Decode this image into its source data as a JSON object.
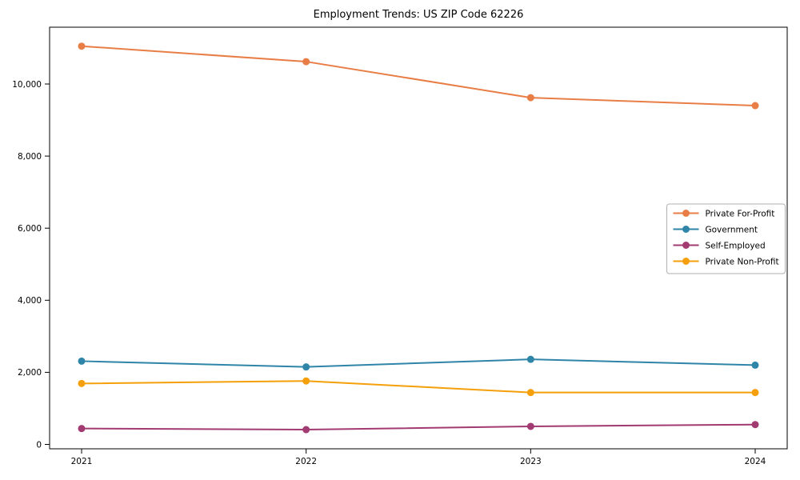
{
  "figure": {
    "background": "#ffffff"
  },
  "chart_data": {
    "type": "line",
    "title": "Employment Trends: US ZIP Code 62226",
    "xlabel": "",
    "ylabel": "",
    "x": [
      2021,
      2022,
      2023,
      2024
    ],
    "x_tick_labels": [
      "2021",
      "2022",
      "2023",
      "2024"
    ],
    "series": [
      {
        "name": "Private For-Profit",
        "color": "#E87D46",
        "values": [
          11050,
          10620,
          9620,
          9400
        ]
      },
      {
        "name": "Government",
        "color": "#2F85A8",
        "values": [
          2310,
          2150,
          2360,
          2200
        ]
      },
      {
        "name": "Self-Employed",
        "color": "#A23B72",
        "values": [
          440,
          410,
          500,
          550
        ]
      },
      {
        "name": "Private Non-Profit",
        "color": "#F59F0A",
        "values": [
          1690,
          1760,
          1440,
          1440
        ]
      }
    ],
    "ylim": [
      -122,
      11576
    ],
    "yticks": [
      0,
      2000,
      4000,
      6000,
      8000,
      10000
    ],
    "ytick_labels": [
      "0",
      "2,000",
      "4,000",
      "6,000",
      "8,000",
      "10,000"
    ],
    "grid": false,
    "marker": "circle",
    "legend": {
      "position": "center right",
      "border_color": "#b0b0b0",
      "background": "#ffffff"
    },
    "frame_color": "#000000"
  }
}
